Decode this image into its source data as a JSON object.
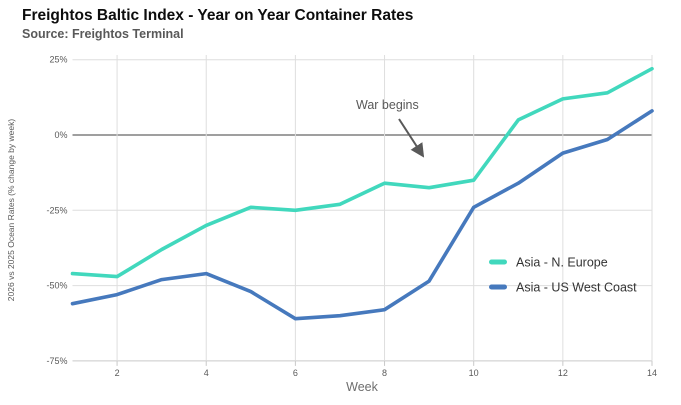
{
  "header": {
    "title": "Freightos Baltic Index - Year on Year Container Rates",
    "subtitle": "Source: Freightos Terminal"
  },
  "chart_data": {
    "type": "line",
    "x": [
      1,
      2,
      3,
      4,
      5,
      6,
      7,
      8,
      9,
      10,
      11,
      12,
      13,
      14
    ],
    "series": [
      {
        "name": "Asia - N. Europe",
        "color": "#41d8bd",
        "values": [
          -46,
          -47,
          -38,
          -30,
          -24,
          -25,
          -23,
          -16,
          -17.5,
          -15,
          5,
          12,
          14,
          22
        ]
      },
      {
        "name": "Asia - US West Coast",
        "color": "#4679bd",
        "values": [
          -56,
          -53,
          -48,
          -46,
          -52,
          -61,
          -60,
          -58,
          -48.5,
          -24,
          -16,
          -6,
          -1.5,
          8
        ]
      }
    ],
    "title": "Freightos Baltic Index - Year on Year Container Rates",
    "xlabel": "Week",
    "ylabel": "2026 vs 2025 Ocean Rates (% change by week)",
    "ylim": [
      -75,
      25
    ],
    "yticks": [
      25,
      0,
      -25,
      -50,
      -75
    ],
    "ytick_labels": [
      "25%",
      "0%",
      "-25%",
      "-50%",
      "-75%"
    ],
    "xticks": [
      2,
      4,
      6,
      8,
      10,
      12,
      14
    ],
    "grid": true,
    "legend_position": "inside-right",
    "annotation": {
      "text": "War begins",
      "target": "week 9 near 0% line"
    }
  },
  "colors": {
    "grid": "#dedede",
    "axis": "#c9c9c9",
    "zero_line": "#666666",
    "annotation": "#595959"
  }
}
